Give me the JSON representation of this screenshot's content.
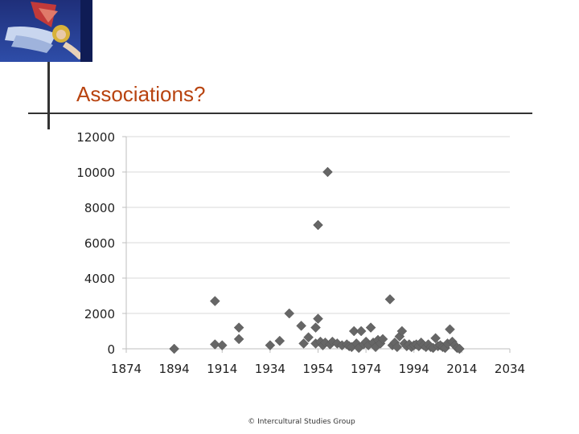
{
  "slide": {
    "title": "Associations?",
    "footer": "© Intercultural Studies Group",
    "title_color": "#b8430f",
    "thumbnail_icon": "angel-painting-icon"
  },
  "chart_data": {
    "type": "scatter",
    "title": "",
    "xlabel": "",
    "ylabel": "",
    "xlim": [
      1874,
      2034
    ],
    "ylim": [
      0,
      12000
    ],
    "xticks": [
      1874,
      1894,
      1914,
      1934,
      1954,
      1974,
      1994,
      2014,
      2034
    ],
    "yticks": [
      0,
      2000,
      4000,
      6000,
      8000,
      10000,
      12000
    ],
    "grid": "horizontal",
    "legend": "none",
    "marker": "diamond",
    "marker_color": "#666666",
    "series": [
      {
        "points": [
          [
            1894,
            0
          ],
          [
            1911,
            2700
          ],
          [
            1911,
            250
          ],
          [
            1914,
            200
          ],
          [
            1921,
            1200
          ],
          [
            1921,
            550
          ],
          [
            1934,
            200
          ],
          [
            1938,
            450
          ],
          [
            1942,
            2000
          ],
          [
            1947,
            1300
          ],
          [
            1948,
            300
          ],
          [
            1950,
            650
          ],
          [
            1953,
            300
          ],
          [
            1953,
            1200
          ],
          [
            1954,
            7000
          ],
          [
            1954,
            1700
          ],
          [
            1955,
            400
          ],
          [
            1956,
            200
          ],
          [
            1957,
            350
          ],
          [
            1958,
            10000
          ],
          [
            1959,
            250
          ],
          [
            1960,
            400
          ],
          [
            1962,
            300
          ],
          [
            1964,
            200
          ],
          [
            1966,
            250
          ],
          [
            1967,
            150
          ],
          [
            1968,
            100
          ],
          [
            1969,
            1000
          ],
          [
            1970,
            300
          ],
          [
            1971,
            50
          ],
          [
            1972,
            1000
          ],
          [
            1973,
            250
          ],
          [
            1974,
            400
          ],
          [
            1975,
            200
          ],
          [
            1976,
            1200
          ],
          [
            1977,
            350
          ],
          [
            1978,
            100
          ],
          [
            1979,
            500
          ],
          [
            1980,
            300
          ],
          [
            1981,
            550
          ],
          [
            1984,
            2800
          ],
          [
            1985,
            200
          ],
          [
            1986,
            350
          ],
          [
            1987,
            100
          ],
          [
            1988,
            700
          ],
          [
            1989,
            1000
          ],
          [
            1990,
            300
          ],
          [
            1991,
            150
          ],
          [
            1992,
            250
          ],
          [
            1993,
            100
          ],
          [
            1994,
            200
          ],
          [
            1995,
            250
          ],
          [
            1996,
            150
          ],
          [
            1997,
            350
          ],
          [
            1998,
            200
          ],
          [
            1999,
            100
          ],
          [
            2000,
            250
          ],
          [
            2001,
            100
          ],
          [
            2002,
            50
          ],
          [
            2003,
            600
          ],
          [
            2004,
            150
          ],
          [
            2005,
            200
          ],
          [
            2006,
            100
          ],
          [
            2007,
            50
          ],
          [
            2008,
            300
          ],
          [
            2009,
            1100
          ],
          [
            2010,
            400
          ],
          [
            2011,
            200
          ],
          [
            2012,
            50
          ],
          [
            2013,
            0
          ]
        ]
      }
    ]
  }
}
